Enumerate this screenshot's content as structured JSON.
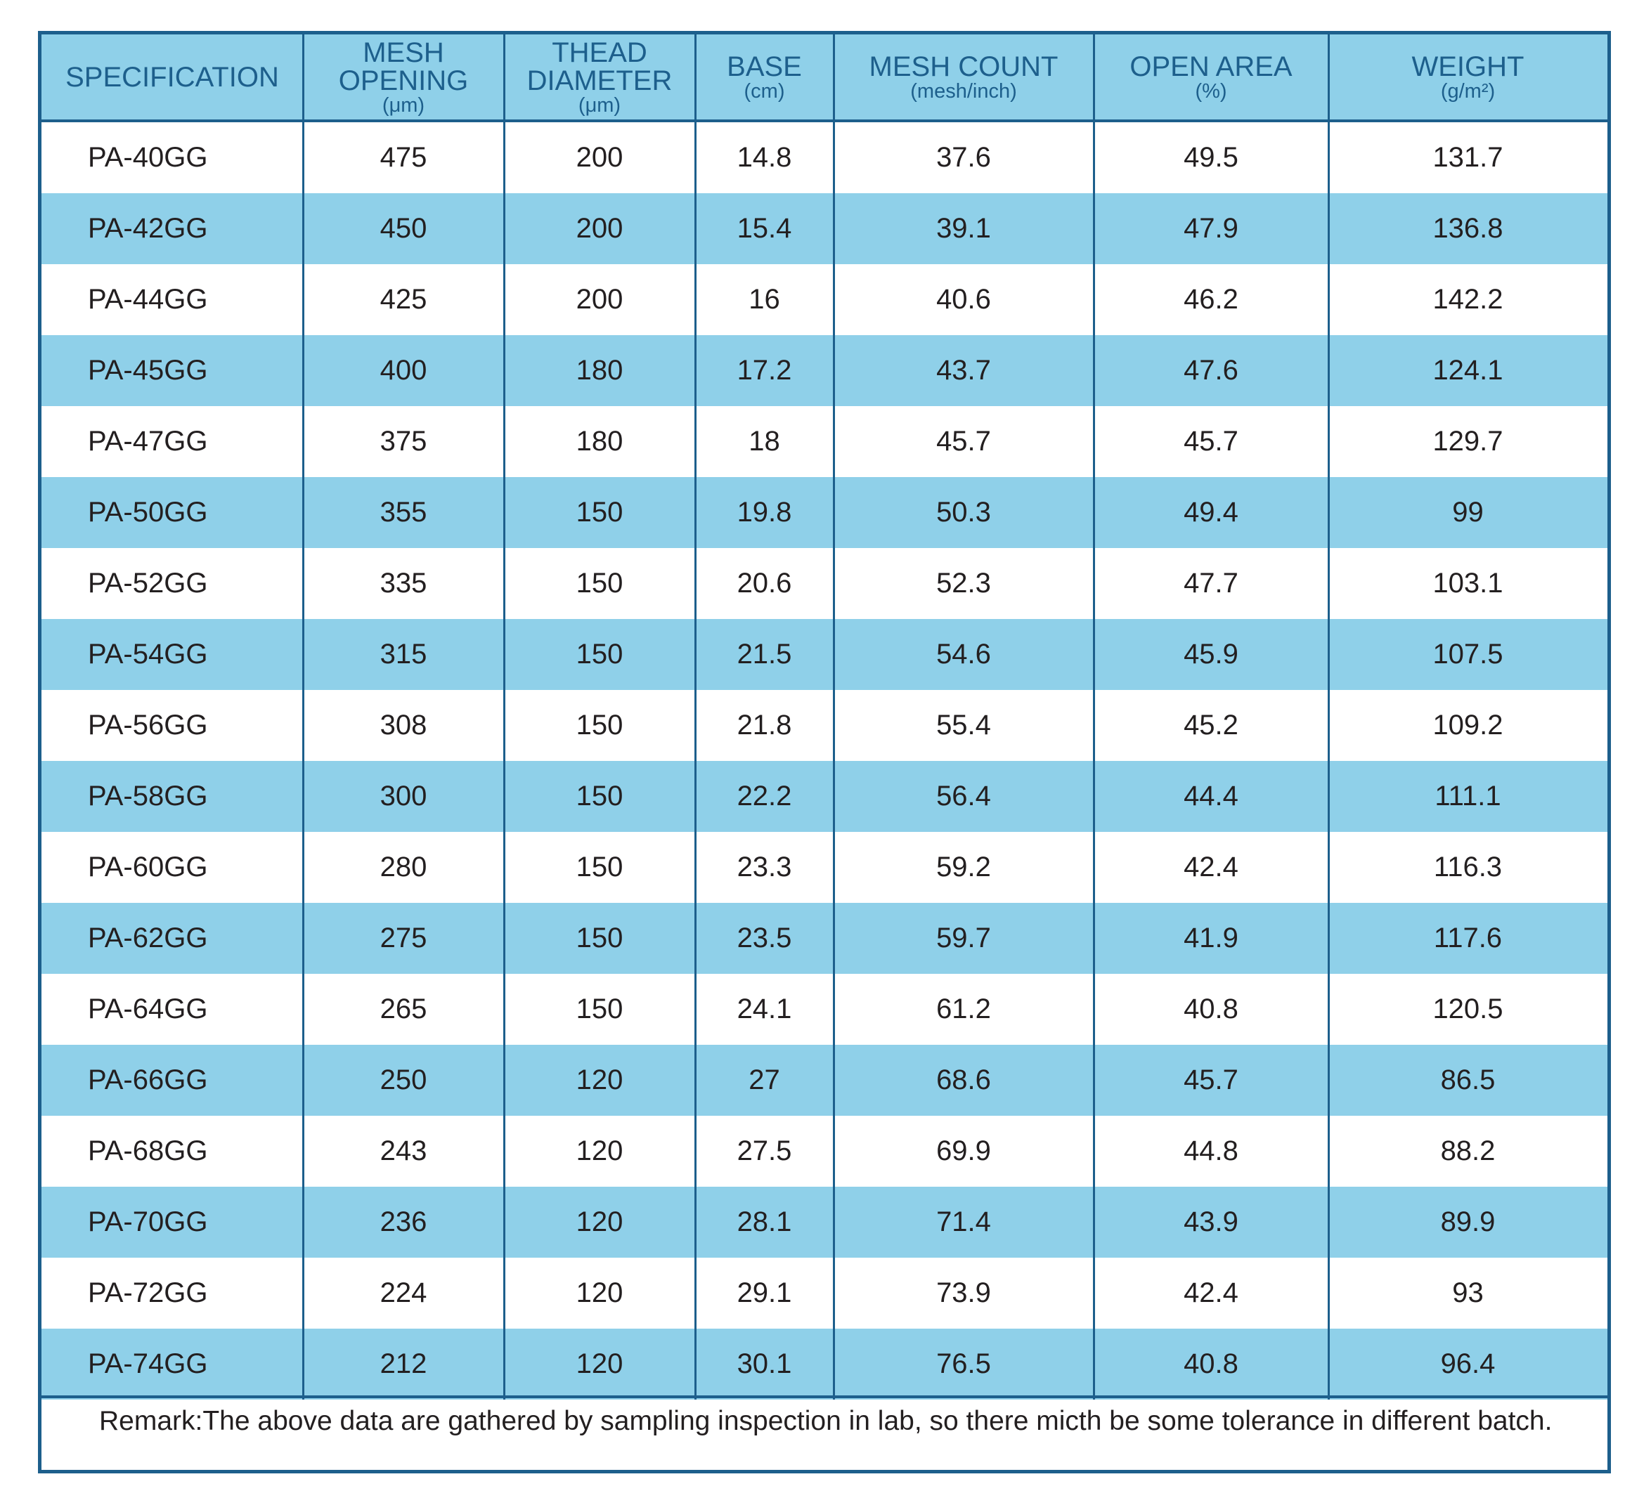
{
  "table": {
    "columns": [
      {
        "main": "SPECIFICATION",
        "unit": ""
      },
      {
        "main": "MESH\nOPENING",
        "unit": "(μm)"
      },
      {
        "main": "THEAD\nDIAMETER",
        "unit": "(μm)"
      },
      {
        "main": "BASE",
        "unit": "(cm)"
      },
      {
        "main": "MESH COUNT",
        "unit": "(mesh/inch)"
      },
      {
        "main": "OPEN AREA",
        "unit": "(%)"
      },
      {
        "main": "WEIGHT",
        "unit": "(g/m²)"
      }
    ],
    "rows": [
      [
        "PA-40GG",
        "475",
        "200",
        "14.8",
        "37.6",
        "49.5",
        "131.7"
      ],
      [
        "PA-42GG",
        "450",
        "200",
        "15.4",
        "39.1",
        "47.9",
        "136.8"
      ],
      [
        "PA-44GG",
        "425",
        "200",
        "16",
        "40.6",
        "46.2",
        "142.2"
      ],
      [
        "PA-45GG",
        "400",
        "180",
        "17.2",
        "43.7",
        "47.6",
        "124.1"
      ],
      [
        "PA-47GG",
        "375",
        "180",
        "18",
        "45.7",
        "45.7",
        "129.7"
      ],
      [
        "PA-50GG",
        "355",
        "150",
        "19.8",
        "50.3",
        "49.4",
        "99"
      ],
      [
        "PA-52GG",
        "335",
        "150",
        "20.6",
        "52.3",
        "47.7",
        "103.1"
      ],
      [
        "PA-54GG",
        "315",
        "150",
        "21.5",
        "54.6",
        "45.9",
        "107.5"
      ],
      [
        "PA-56GG",
        "308",
        "150",
        "21.8",
        "55.4",
        "45.2",
        "109.2"
      ],
      [
        "PA-58GG",
        "300",
        "150",
        "22.2",
        "56.4",
        "44.4",
        "111.1"
      ],
      [
        "PA-60GG",
        "280",
        "150",
        "23.3",
        "59.2",
        "42.4",
        "116.3"
      ],
      [
        "PA-62GG",
        "275",
        "150",
        "23.5",
        "59.7",
        "41.9",
        "117.6"
      ],
      [
        "PA-64GG",
        "265",
        "150",
        "24.1",
        "61.2",
        "40.8",
        "120.5"
      ],
      [
        "PA-66GG",
        "250",
        "120",
        "27",
        "68.6",
        "45.7",
        "86.5"
      ],
      [
        "PA-68GG",
        "243",
        "120",
        "27.5",
        "69.9",
        "44.8",
        "88.2"
      ],
      [
        "PA-70GG",
        "236",
        "120",
        "28.1",
        "71.4",
        "43.9",
        "89.9"
      ],
      [
        "PA-72GG",
        "224",
        "120",
        "29.1",
        "73.9",
        "42.4",
        "93"
      ],
      [
        "PA-74GG",
        "212",
        "120",
        "30.1",
        "76.5",
        "40.8",
        "96.4"
      ]
    ]
  },
  "remark": "Remark:The above data are gathered by sampling inspection in lab, so there micth be some tolerance in different batch.",
  "colors": {
    "border": "#1d5f8c",
    "stripe": "#8fd0e9",
    "header_text": "#1d5f8c",
    "body_text": "#231f20"
  }
}
